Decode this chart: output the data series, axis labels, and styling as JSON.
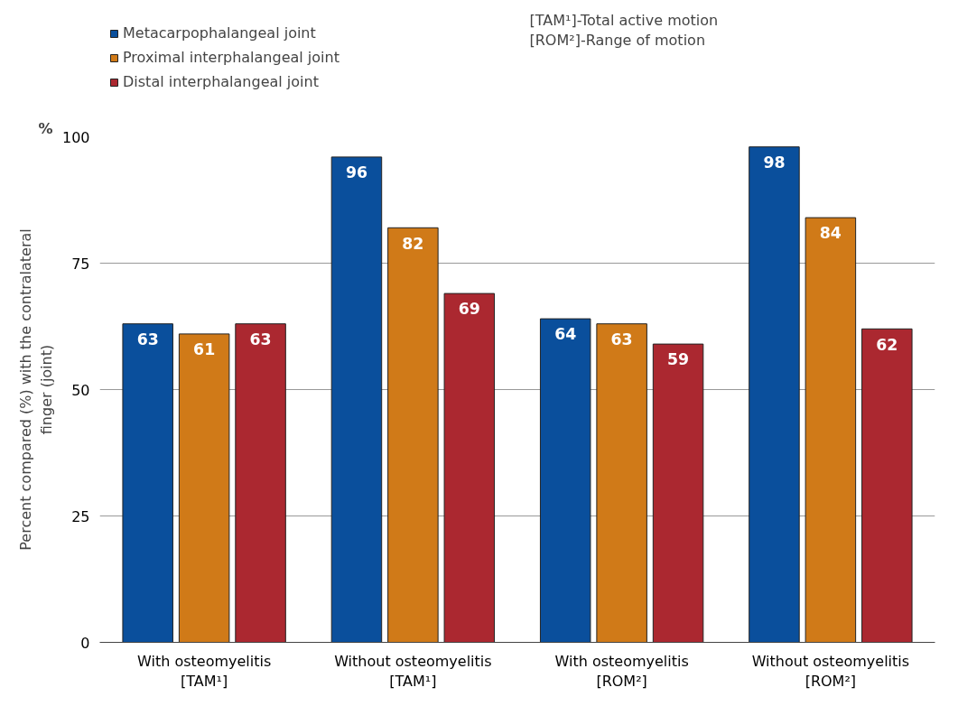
{
  "chart_data": {
    "type": "bar",
    "categories": [
      "With osteomyelitis\n[TAM¹]",
      "Without osteomyelitis\n[TAM¹]",
      "With osteomyelitis\n[ROM²]",
      "Without osteomyelitis\n[ROM²]"
    ],
    "series": [
      {
        "name": "Metacarpophalangeal joint",
        "color": "#0a4f9c",
        "values": [
          63,
          96,
          64,
          98
        ]
      },
      {
        "name": "Proximal interphalangeal joint",
        "color": "#d07a18",
        "values": [
          61,
          82,
          63,
          84
        ]
      },
      {
        "name": "Distal interphalangeal joint",
        "color": "#ab2830",
        "values": [
          63,
          69,
          59,
          62
        ]
      }
    ],
    "ylabel": "Percent compared (%) with the contralateral finger (joint)",
    "annotations": [
      "%",
      "[TAM¹]-Total active motion",
      "[ROM²]-Range of motion"
    ],
    "ylim": [
      0,
      100
    ],
    "yticks": [
      0,
      25,
      50,
      75,
      100
    ],
    "grid": "y",
    "legend": "top left",
    "data_labels": true
  }
}
